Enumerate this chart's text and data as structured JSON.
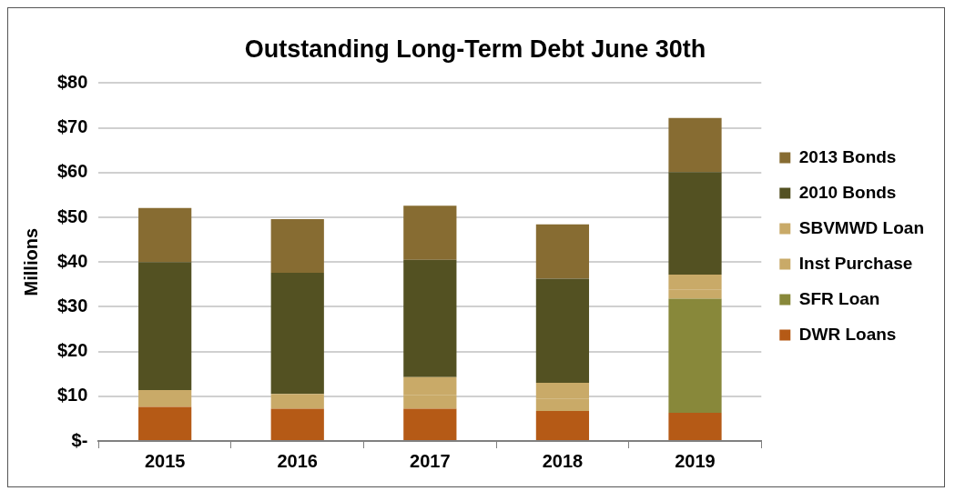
{
  "chart_data": {
    "type": "bar",
    "title": "Outstanding Long-Term Debt June 30th",
    "ylabel": "Millions",
    "stacked": true,
    "categories": [
      "2015",
      "2016",
      "2017",
      "2018",
      "2019"
    ],
    "series": [
      {
        "name": "DWR Loans",
        "color": "#b55a16",
        "values": [
          7.6,
          7.2,
          7.2,
          6.7,
          6.3
        ]
      },
      {
        "name": "SFR Loan",
        "color": "#88883a",
        "values": [
          null,
          null,
          null,
          null,
          25.5
        ]
      },
      {
        "name": "Inst Purchase",
        "color": "#c9aa68",
        "values": [
          3.8,
          3.3,
          3.0,
          2.7,
          2.0
        ]
      },
      {
        "name": "SBVMWD Loan",
        "color": "#c9aa68",
        "values": [
          null,
          null,
          4.1,
          3.6,
          3.4
        ]
      },
      {
        "name": "2010 Bonds",
        "color": "#535122",
        "values": [
          28.6,
          27.1,
          26.2,
          23.3,
          22.9
        ]
      },
      {
        "name": "2013 Bonds",
        "color": "#876c32",
        "values": [
          12.1,
          12.0,
          12.1,
          12.1,
          12.1
        ]
      }
    ],
    "ylim": [
      0,
      80
    ],
    "yticks": [
      {
        "value": 0,
        "label": "$-"
      },
      {
        "value": 10,
        "label": "$10"
      },
      {
        "value": 20,
        "label": "$20"
      },
      {
        "value": 30,
        "label": "$30"
      },
      {
        "value": 40,
        "label": "$40"
      },
      {
        "value": 50,
        "label": "$50"
      },
      {
        "value": 60,
        "label": "$60"
      },
      {
        "value": 70,
        "label": "$70"
      },
      {
        "value": 80,
        "label": "$80"
      }
    ],
    "grid": "y",
    "legend": "right"
  }
}
